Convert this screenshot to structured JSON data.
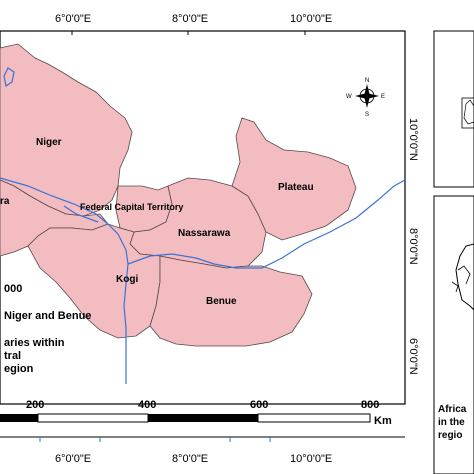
{
  "map": {
    "colors": {
      "region_fill": "#f2bcc0",
      "region_stroke": "#5a4648",
      "river": "#3a72d8",
      "frame": "#000000",
      "background": "#ffffff"
    },
    "top_longitude_labels": [
      "6°0'0\"E",
      "8°0'0\"E",
      "10°0'0\"E"
    ],
    "bottom_longitude_labels": [
      "6°0'0\"E",
      "8°0'0\"E",
      "10°0'0\"E"
    ],
    "latitude_labels": [
      "10°0'0\"N",
      "8°0'0\"N",
      "6°0'0\"N"
    ],
    "states": [
      "Niger",
      "Federal Capital Territory",
      "Nassarawa",
      "Plateau",
      "Kogi",
      "Benue",
      "ra"
    ],
    "compass": {
      "north": "N",
      "south": "S",
      "east": "E",
      "west": "W"
    },
    "scalebar": {
      "labels": [
        "200",
        "400",
        "600",
        "800"
      ],
      "unit": "Km"
    },
    "legend": {
      "lines": [
        "000",
        "Niger and Benue",
        "aries within",
        "tral",
        "egion"
      ]
    },
    "inset_bottom": {
      "lines": [
        "Africa",
        "in the",
        "regio"
      ]
    }
  }
}
